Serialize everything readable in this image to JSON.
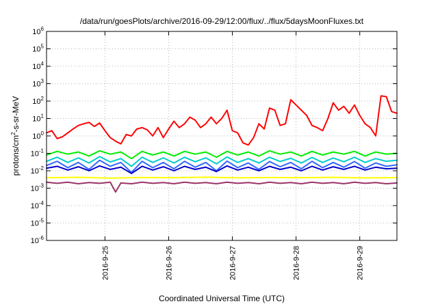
{
  "chart_data": {
    "type": "line",
    "title": "/data/run/goesPlots/archive/2016-09-29/12:00/flux/../flux/5daysMoonFluxes.txt",
    "xlabel": "Coordinated Universal Time (UTC)",
    "ylabel": "protons/cm",
    "ylabel_sup": "2",
    "ylabel_rest": "-s-sr-MeV",
    "yscale": "log",
    "ylim": [
      1e-06,
      1000000.0
    ],
    "xlim": [
      "2016-09-24T02:00",
      "2016-09-29T14:00"
    ],
    "grid": true,
    "y_ticks": [
      {
        "value": 1e-06,
        "base": "10",
        "exp": "-6"
      },
      {
        "value": 1e-05,
        "base": "10",
        "exp": "-5"
      },
      {
        "value": 0.0001,
        "base": "10",
        "exp": "-4"
      },
      {
        "value": 0.001,
        "base": "10",
        "exp": "-3"
      },
      {
        "value": 0.01,
        "base": "10",
        "exp": "-2"
      },
      {
        "value": 0.1,
        "base": "10",
        "exp": "-1"
      },
      {
        "value": 1,
        "base": "10",
        "exp": "0"
      },
      {
        "value": 10,
        "base": "10",
        "exp": "1"
      },
      {
        "value": 100,
        "base": "10",
        "exp": "2"
      },
      {
        "value": 1000,
        "base": "10",
        "exp": "3"
      },
      {
        "value": 10000,
        "base": "10",
        "exp": "4"
      },
      {
        "value": 100000,
        "base": "10",
        "exp": "5"
      },
      {
        "value": 1000000,
        "base": "10",
        "exp": "6"
      }
    ],
    "x_ticks": [
      {
        "value": "2016-09-25T00:00",
        "label": "2016-9-25"
      },
      {
        "value": "2016-09-26T00:00",
        "label": "2016-9-26"
      },
      {
        "value": "2016-09-27T00:00",
        "label": "2016-9-27"
      },
      {
        "value": "2016-09-28T00:00",
        "label": "2016-9-28"
      },
      {
        "value": "2016-09-29T00:00",
        "label": "2016-9-29"
      }
    ],
    "series": [
      {
        "color": "#ff0000",
        "x": [
          "2016-09-24T02:00",
          "2016-09-24T04:00",
          "2016-09-24T06:00",
          "2016-09-24T08:00",
          "2016-09-24T10:00",
          "2016-09-24T12:00",
          "2016-09-24T14:00",
          "2016-09-24T16:00",
          "2016-09-24T18:00",
          "2016-09-24T20:00",
          "2016-09-24T22:00",
          "2016-09-25T00:00",
          "2016-09-25T02:00",
          "2016-09-25T04:00",
          "2016-09-25T06:00",
          "2016-09-25T08:00",
          "2016-09-25T10:00",
          "2016-09-25T12:00",
          "2016-09-25T14:00",
          "2016-09-25T16:00",
          "2016-09-25T18:00",
          "2016-09-25T20:00",
          "2016-09-25T22:00",
          "2016-09-26T00:00",
          "2016-09-26T02:00",
          "2016-09-26T04:00",
          "2016-09-26T06:00",
          "2016-09-26T08:00",
          "2016-09-26T10:00",
          "2016-09-26T12:00",
          "2016-09-26T14:00",
          "2016-09-26T16:00",
          "2016-09-26T18:00",
          "2016-09-26T20:00",
          "2016-09-26T22:00",
          "2016-09-27T00:00",
          "2016-09-27T02:00",
          "2016-09-27T04:00",
          "2016-09-27T06:00",
          "2016-09-27T08:00",
          "2016-09-27T10:00",
          "2016-09-27T12:00",
          "2016-09-27T14:00",
          "2016-09-27T16:00",
          "2016-09-27T18:00",
          "2016-09-27T20:00",
          "2016-09-27T22:00",
          "2016-09-28T00:00",
          "2016-09-28T02:00",
          "2016-09-28T04:00",
          "2016-09-28T06:00",
          "2016-09-28T08:00",
          "2016-09-28T10:00",
          "2016-09-28T12:00",
          "2016-09-28T14:00",
          "2016-09-28T16:00",
          "2016-09-28T18:00",
          "2016-09-28T20:00",
          "2016-09-28T22:00",
          "2016-09-29T00:00",
          "2016-09-29T02:00",
          "2016-09-29T04:00",
          "2016-09-29T06:00",
          "2016-09-29T08:00",
          "2016-09-29T10:00",
          "2016-09-29T12:00",
          "2016-09-29T14:00"
        ],
        "y": [
          1.5,
          2.0,
          0.7,
          0.9,
          1.5,
          2.5,
          4.0,
          5.0,
          6.0,
          3.5,
          5.5,
          2.0,
          0.8,
          0.5,
          0.35,
          1.2,
          1.0,
          2.5,
          3.0,
          2.2,
          1.0,
          3.0,
          0.8,
          2.5,
          7.0,
          3.0,
          5.0,
          12.0,
          8.0,
          3.0,
          5.0,
          12.0,
          5.0,
          10.0,
          30.0,
          2.0,
          1.5,
          0.4,
          0.3,
          0.8,
          5.0,
          2.5,
          40.0,
          30.0,
          4.0,
          5.0,
          120.0,
          60.0,
          30.0,
          15.0,
          4.0,
          3.0,
          2.0,
          10.0,
          80.0,
          30.0,
          50.0,
          20.0,
          60.0,
          15.0,
          5.0,
          3.0,
          1.0,
          200.0,
          180.0,
          25.0,
          20.0
        ]
      },
      {
        "color": "#00ee00",
        "x": [
          "2016-09-24T02:00",
          "2016-09-24T06:00",
          "2016-09-24T10:00",
          "2016-09-24T14:00",
          "2016-09-24T18:00",
          "2016-09-24T22:00",
          "2016-09-25T02:00",
          "2016-09-25T06:00",
          "2016-09-25T10:00",
          "2016-09-25T14:00",
          "2016-09-25T18:00",
          "2016-09-25T22:00",
          "2016-09-26T02:00",
          "2016-09-26T06:00",
          "2016-09-26T10:00",
          "2016-09-26T14:00",
          "2016-09-26T18:00",
          "2016-09-26T22:00",
          "2016-09-27T02:00",
          "2016-09-27T06:00",
          "2016-09-27T10:00",
          "2016-09-27T14:00",
          "2016-09-27T18:00",
          "2016-09-27T22:00",
          "2016-09-28T02:00",
          "2016-09-28T06:00",
          "2016-09-28T10:00",
          "2016-09-28T14:00",
          "2016-09-28T18:00",
          "2016-09-28T22:00",
          "2016-09-29T02:00",
          "2016-09-29T06:00",
          "2016-09-29T10:00",
          "2016-09-29T14:00"
        ],
        "y": [
          0.08,
          0.13,
          0.09,
          0.12,
          0.07,
          0.14,
          0.09,
          0.12,
          0.05,
          0.13,
          0.08,
          0.12,
          0.07,
          0.13,
          0.09,
          0.12,
          0.06,
          0.13,
          0.08,
          0.12,
          0.07,
          0.14,
          0.09,
          0.12,
          0.07,
          0.13,
          0.08,
          0.12,
          0.09,
          0.13,
          0.07,
          0.12,
          0.09,
          0.1
        ]
      },
      {
        "color": "#00cccc",
        "x": [
          "2016-09-24T02:00",
          "2016-09-24T06:00",
          "2016-09-24T10:00",
          "2016-09-24T14:00",
          "2016-09-24T18:00",
          "2016-09-24T22:00",
          "2016-09-25T02:00",
          "2016-09-25T06:00",
          "2016-09-25T10:00",
          "2016-09-25T14:00",
          "2016-09-25T18:00",
          "2016-09-25T22:00",
          "2016-09-26T02:00",
          "2016-09-26T06:00",
          "2016-09-26T10:00",
          "2016-09-26T14:00",
          "2016-09-26T18:00",
          "2016-09-26T22:00",
          "2016-09-27T02:00",
          "2016-09-27T06:00",
          "2016-09-27T10:00",
          "2016-09-27T14:00",
          "2016-09-27T18:00",
          "2016-09-27T22:00",
          "2016-09-28T02:00",
          "2016-09-28T06:00",
          "2016-09-28T10:00",
          "2016-09-28T14:00",
          "2016-09-28T18:00",
          "2016-09-28T22:00",
          "2016-09-29T02:00",
          "2016-09-29T06:00",
          "2016-09-29T10:00",
          "2016-09-29T14:00"
        ],
        "y": [
          0.035,
          0.06,
          0.03,
          0.055,
          0.028,
          0.065,
          0.032,
          0.05,
          0.018,
          0.06,
          0.03,
          0.055,
          0.028,
          0.06,
          0.033,
          0.055,
          0.025,
          0.062,
          0.03,
          0.05,
          0.028,
          0.06,
          0.034,
          0.052,
          0.028,
          0.058,
          0.03,
          0.054,
          0.033,
          0.06,
          0.03,
          0.05,
          0.035,
          0.04
        ]
      },
      {
        "color": "#3366ff",
        "x": [
          "2016-09-24T02:00",
          "2016-09-24T06:00",
          "2016-09-24T10:00",
          "2016-09-24T14:00",
          "2016-09-24T18:00",
          "2016-09-24T22:00",
          "2016-09-25T02:00",
          "2016-09-25T06:00",
          "2016-09-25T10:00",
          "2016-09-25T14:00",
          "2016-09-25T18:00",
          "2016-09-25T22:00",
          "2016-09-26T02:00",
          "2016-09-26T06:00",
          "2016-09-26T10:00",
          "2016-09-26T14:00",
          "2016-09-26T18:00",
          "2016-09-26T22:00",
          "2016-09-27T02:00",
          "2016-09-27T06:00",
          "2016-09-27T10:00",
          "2016-09-27T14:00",
          "2016-09-27T18:00",
          "2016-09-27T22:00",
          "2016-09-28T02:00",
          "2016-09-28T06:00",
          "2016-09-28T10:00",
          "2016-09-28T14:00",
          "2016-09-28T18:00",
          "2016-09-28T22:00",
          "2016-09-29T02:00",
          "2016-09-29T06:00",
          "2016-09-29T10:00",
          "2016-09-29T14:00"
        ],
        "y": [
          0.02,
          0.035,
          0.015,
          0.03,
          0.012,
          0.04,
          0.018,
          0.03,
          0.008,
          0.035,
          0.015,
          0.03,
          0.013,
          0.035,
          0.016,
          0.03,
          0.01,
          0.036,
          0.015,
          0.028,
          0.012,
          0.034,
          0.017,
          0.03,
          0.013,
          0.035,
          0.015,
          0.03,
          0.016,
          0.034,
          0.014,
          0.028,
          0.018,
          0.022
        ]
      },
      {
        "color": "#0000cc",
        "x": [
          "2016-09-24T02:00",
          "2016-09-24T06:00",
          "2016-09-24T10:00",
          "2016-09-24T14:00",
          "2016-09-24T18:00",
          "2016-09-24T22:00",
          "2016-09-25T02:00",
          "2016-09-25T06:00",
          "2016-09-25T10:00",
          "2016-09-25T14:00",
          "2016-09-25T18:00",
          "2016-09-25T22:00",
          "2016-09-26T02:00",
          "2016-09-26T06:00",
          "2016-09-26T10:00",
          "2016-09-26T14:00",
          "2016-09-26T18:00",
          "2016-09-26T22:00",
          "2016-09-27T02:00",
          "2016-09-27T06:00",
          "2016-09-27T10:00",
          "2016-09-27T14:00",
          "2016-09-27T18:00",
          "2016-09-27T22:00",
          "2016-09-28T02:00",
          "2016-09-28T06:00",
          "2016-09-28T10:00",
          "2016-09-28T14:00",
          "2016-09-28T18:00",
          "2016-09-28T22:00",
          "2016-09-29T02:00",
          "2016-09-29T06:00",
          "2016-09-29T10:00",
          "2016-09-29T14:00"
        ],
        "y": [
          0.014,
          0.018,
          0.011,
          0.017,
          0.01,
          0.019,
          0.012,
          0.016,
          0.007,
          0.018,
          0.011,
          0.017,
          0.01,
          0.018,
          0.012,
          0.016,
          0.009,
          0.019,
          0.011,
          0.016,
          0.01,
          0.018,
          0.012,
          0.016,
          0.01,
          0.018,
          0.011,
          0.017,
          0.012,
          0.018,
          0.011,
          0.016,
          0.013,
          0.014
        ]
      },
      {
        "color": "#ffff00",
        "x": [
          "2016-09-24T02:00",
          "2016-09-24T14:00",
          "2016-09-25T02:00",
          "2016-09-25T14:00",
          "2016-09-26T02:00",
          "2016-09-26T14:00",
          "2016-09-27T02:00",
          "2016-09-27T14:00",
          "2016-09-28T02:00",
          "2016-09-28T14:00",
          "2016-09-29T02:00",
          "2016-09-29T14:00"
        ],
        "y": [
          0.004,
          0.0042,
          0.0038,
          0.0041,
          0.004,
          0.0043,
          0.0039,
          0.0041,
          0.004,
          0.0042,
          0.0039,
          0.004
        ]
      },
      {
        "color": "#993366",
        "x": [
          "2016-09-24T02:00",
          "2016-09-24T06:00",
          "2016-09-24T10:00",
          "2016-09-24T14:00",
          "2016-09-24T18:00",
          "2016-09-24T22:00",
          "2016-09-25T02:00",
          "2016-09-25T04:00",
          "2016-09-25T06:00",
          "2016-09-25T10:00",
          "2016-09-25T14:00",
          "2016-09-25T18:00",
          "2016-09-25T22:00",
          "2016-09-26T02:00",
          "2016-09-26T06:00",
          "2016-09-26T10:00",
          "2016-09-26T14:00",
          "2016-09-26T18:00",
          "2016-09-26T22:00",
          "2016-09-27T02:00",
          "2016-09-27T06:00",
          "2016-09-27T10:00",
          "2016-09-27T14:00",
          "2016-09-27T18:00",
          "2016-09-27T22:00",
          "2016-09-28T02:00",
          "2016-09-28T06:00",
          "2016-09-28T10:00",
          "2016-09-28T14:00",
          "2016-09-28T18:00",
          "2016-09-28T22:00",
          "2016-09-29T02:00",
          "2016-09-29T06:00",
          "2016-09-29T10:00",
          "2016-09-29T14:00"
        ],
        "y": [
          0.0022,
          0.0019,
          0.0022,
          0.0018,
          0.0021,
          0.0019,
          0.0022,
          0.0006,
          0.002,
          0.0018,
          0.0022,
          0.0019,
          0.0021,
          0.0018,
          0.0022,
          0.0019,
          0.0021,
          0.0018,
          0.0022,
          0.0019,
          0.0021,
          0.0018,
          0.0022,
          0.0019,
          0.0021,
          0.0018,
          0.0022,
          0.0019,
          0.0021,
          0.0018,
          0.0022,
          0.0019,
          0.0021,
          0.0018,
          0.002
        ]
      }
    ]
  }
}
